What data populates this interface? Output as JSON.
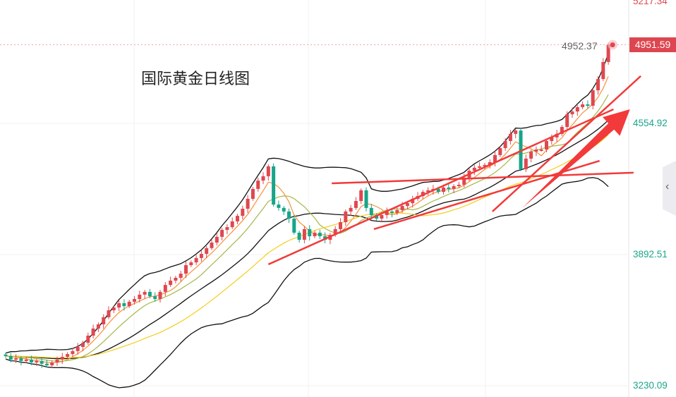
{
  "chart_data": {
    "type": "candlestick",
    "title": "国际黄金日线图",
    "y_ticks": [
      "5217.34",
      "4554.92",
      "3892.51",
      "3230.09"
    ],
    "y_tick_values": [
      5217.34,
      4554.92,
      3892.51,
      3230.09
    ],
    "last_price": "4951.59",
    "marker_price": "4952.37",
    "up_color": "#e0474f",
    "down_color": "#17a589",
    "closes": [
      3380,
      3362,
      3369,
      3355,
      3362,
      3348,
      3355,
      3341,
      3333,
      3348,
      3362,
      3376,
      3390,
      3405,
      3426,
      3447,
      3483,
      3519,
      3540,
      3576,
      3611,
      3625,
      3647,
      3632,
      3654,
      3668,
      3690,
      3704,
      3682,
      3668,
      3704,
      3739,
      3761,
      3775,
      3796,
      3839,
      3853,
      3875,
      3896,
      3925,
      3953,
      3982,
      4017,
      4031,
      4060,
      4088,
      4124,
      4174,
      4224,
      4266,
      4288,
      4338,
      4145,
      4128,
      4110,
      4074,
      4003,
      3967,
      4021,
      3985,
      4003,
      3985,
      3967,
      3992,
      4021,
      4056,
      4110,
      4128,
      4163,
      4217,
      4128,
      4092,
      4074,
      4092,
      4110,
      4103,
      4117,
      4138,
      4152,
      4174,
      4188,
      4209,
      4217,
      4224,
      4209,
      4231,
      4224,
      4238,
      4245,
      4281,
      4316,
      4331,
      4338,
      4345,
      4359,
      4395,
      4430,
      4466,
      4502,
      4519,
      4323,
      4377,
      4412,
      4423,
      4423,
      4466,
      4484,
      4502,
      4537,
      4601,
      4615,
      4637,
      4651,
      4644,
      4722,
      4779,
      4865,
      4951.59
    ],
    "moving_averages": [
      {
        "name": "MA5",
        "period": 5,
        "color": "#f7913a"
      },
      {
        "name": "MA10",
        "period": 10,
        "color": "#a4b84a"
      },
      {
        "name": "MA30",
        "period": 30,
        "color": "#f5cd1c"
      }
    ],
    "bollinger": {
      "period": 20,
      "stddev": 2,
      "color": "#111111"
    },
    "trendlines": [
      {
        "from": [
          51,
          3843
        ],
        "to": [
          118,
          4626
        ]
      },
      {
        "from": [
          63.3,
          4252
        ],
        "to": [
          121.9,
          4306
        ]
      },
      {
        "from": [
          71.5,
          4021
        ],
        "to": [
          115.3,
          4366
        ]
      },
      {
        "from": [
          94.5,
          4110
        ],
        "to": [
          123.3,
          4794
        ]
      }
    ],
    "arrow": {
      "from": [
        100.3,
        4128
      ],
      "to": [
        121.2,
        4626
      ],
      "color": "#f23a3a"
    },
    "ylim": [
      3230.09,
      5217.34
    ]
  }
}
